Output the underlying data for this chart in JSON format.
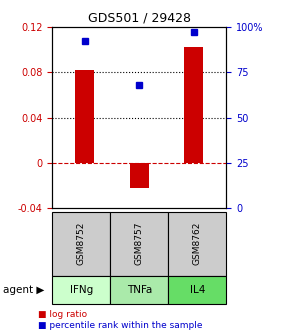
{
  "title": "GDS501 / 29428",
  "samples": [
    "GSM8752",
    "GSM8757",
    "GSM8762"
  ],
  "agents": [
    "IFNg",
    "TNFa",
    "IL4"
  ],
  "log_ratios": [
    0.082,
    -0.022,
    0.102
  ],
  "percentiles": [
    92,
    68,
    97
  ],
  "bar_color": "#cc0000",
  "dot_color": "#0000cc",
  "ylim_left": [
    -0.04,
    0.12
  ],
  "ylim_right": [
    0,
    100
  ],
  "yticks_left": [
    -0.04,
    0,
    0.04,
    0.08,
    0.12
  ],
  "yticks_right": [
    0,
    25,
    50,
    75,
    100
  ],
  "ytick_labels_right": [
    "0",
    "25",
    "50",
    "75",
    "100%"
  ],
  "hlines_dotted": [
    0.04,
    0.08
  ],
  "hline_dashed": 0,
  "agent_colors": [
    "#ccffcc",
    "#aaeaaa",
    "#66dd66"
  ],
  "sample_bg": "#cccccc",
  "legend_log": "log ratio",
  "legend_pct": "percentile rank within the sample",
  "bar_width": 0.35
}
